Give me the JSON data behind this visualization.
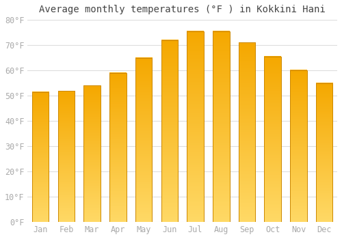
{
  "title": "Average monthly temperatures (°F ) in Kokkini Hani",
  "months": [
    "Jan",
    "Feb",
    "Mar",
    "Apr",
    "May",
    "Jun",
    "Jul",
    "Aug",
    "Sep",
    "Oct",
    "Nov",
    "Dec"
  ],
  "values": [
    51.5,
    51.8,
    54.0,
    59.0,
    65.0,
    72.0,
    75.5,
    75.5,
    71.0,
    65.5,
    60.0,
    55.0
  ],
  "bar_color_top": "#F5A800",
  "bar_color_bottom": "#FFD966",
  "bar_edge_color": "#CC8800",
  "ylim": [
    0,
    80
  ],
  "ytick_step": 10,
  "background_color": "#ffffff",
  "plot_bg_color": "#ffffff",
  "grid_color": "#dddddd",
  "title_fontsize": 10,
  "tick_fontsize": 8.5,
  "tick_color": "#aaaaaa",
  "font_family": "monospace",
  "bar_width": 0.65
}
